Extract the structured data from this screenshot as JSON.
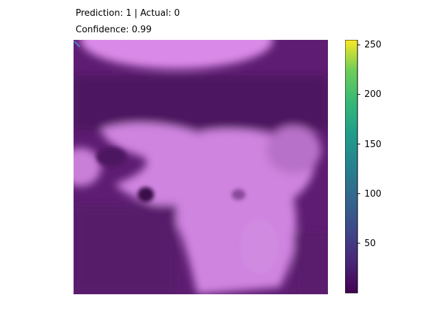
{
  "header": {
    "prediction_line": "Prediction: 1 | Actual: 0",
    "confidence_line": "Confidence: 0.99"
  },
  "chart_data": {
    "type": "heatmap",
    "title": "Prediction: 1 | Actual: 0",
    "subtitle": "Confidence: 0.99",
    "colorbar": {
      "colormap": "viridis",
      "range": [
        0,
        255
      ],
      "ticks": [
        50,
        100,
        150,
        200,
        250
      ],
      "tick_labels": [
        "50",
        "100",
        "150",
        "200",
        "250"
      ]
    },
    "overlay_colors": {
      "low": "#5a1a6e",
      "high": "#d98ae8"
    },
    "grid": false
  }
}
